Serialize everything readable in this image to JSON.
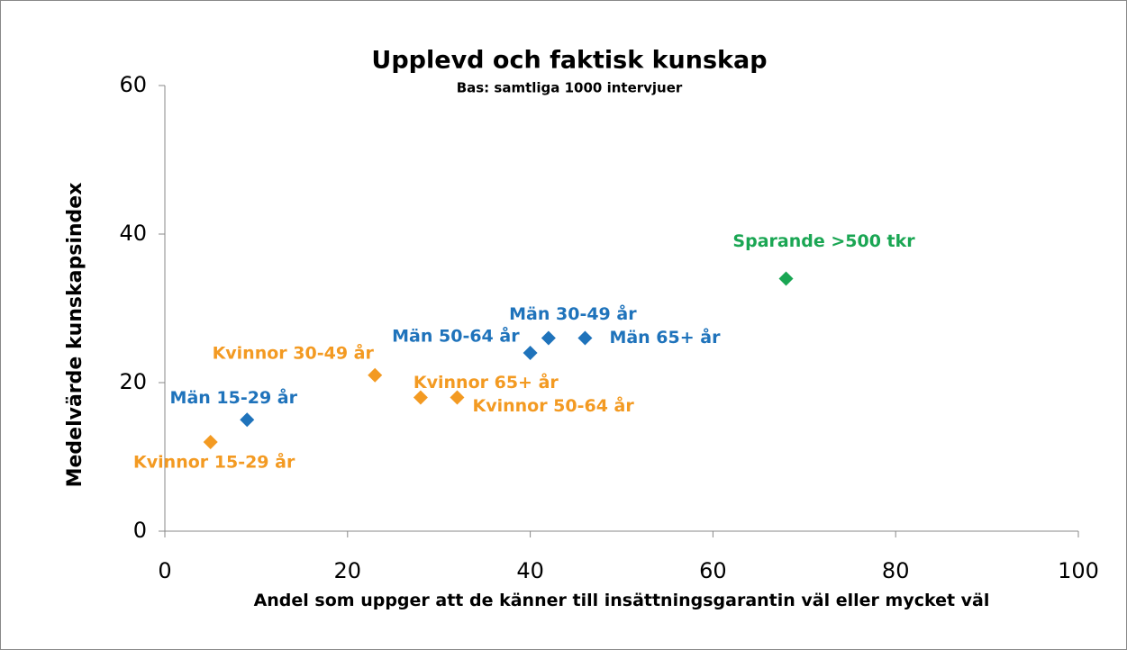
{
  "chart_data": {
    "type": "scatter",
    "title": "Upplevd och faktisk kunskap",
    "subtitle": "Bas: samtliga 1000 intervjuer",
    "x_label": "Andel som uppger att de känner till insättningsgarantin väl eller mycket väl",
    "y_label": "Medelvärde kunskapsindex",
    "x": [
      5,
      9,
      23,
      28,
      32,
      40,
      42,
      46,
      68
    ],
    "values": [
      12,
      15,
      21,
      18,
      18,
      24,
      26,
      26,
      34
    ],
    "labels": [
      "Kvinnor 15-29 år",
      "Män 15-29 år",
      "Kvinnor 30-49 år",
      "Kvinnor 65+ år",
      "Kvinnor 50-64 år",
      "Män 50-64 år",
      "Män 30-49 år",
      "Män 65+ år",
      "Sparande >500 tkr"
    ],
    "colors": [
      "#f39a22",
      "#1f73bb",
      "#f39a22",
      "#f39a22",
      "#f39a22",
      "#1f73bb",
      "#1f73bb",
      "#1f73bb",
      "#1aa653"
    ],
    "xlim": [
      0,
      100
    ],
    "xticks": [
      0,
      20,
      40,
      60,
      80,
      100
    ],
    "ylim": [
      0,
      60
    ],
    "yticks": [
      0,
      20,
      40,
      60
    ],
    "grid": false
  }
}
